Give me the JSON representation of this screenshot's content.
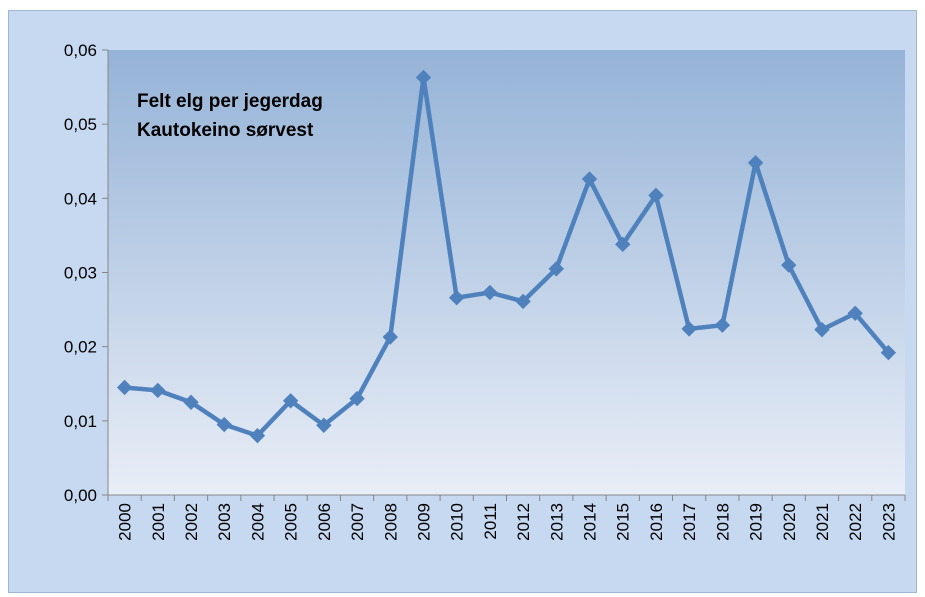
{
  "chart_data": {
    "type": "line",
    "title": [
      "Felt elg per jegerdag",
      "Kautokeino sørvest"
    ],
    "xlabel": "",
    "ylabel": "",
    "categories": [
      "2000",
      "2001",
      "2002",
      "2003",
      "2004",
      "2005",
      "2006",
      "2007",
      "2008",
      "2009",
      "2010",
      "2011",
      "2012",
      "2013",
      "2014",
      "2015",
      "2016",
      "2017",
      "2018",
      "2019",
      "2020",
      "2021",
      "2022",
      "2023"
    ],
    "series": [
      {
        "values": [
          0.0145,
          0.0141,
          0.0125,
          0.0095,
          0.008,
          0.0127,
          0.0094,
          0.013,
          0.0213,
          0.0563,
          0.0266,
          0.0273,
          0.0261,
          0.0305,
          0.0426,
          0.0338,
          0.0404,
          0.0224,
          0.0229,
          0.0448,
          0.031,
          0.0223,
          0.0245,
          0.0192
        ]
      }
    ],
    "ylim": [
      0,
      0.06
    ],
    "yticks": [
      "0,00",
      "0,01",
      "0,02",
      "0,03",
      "0,04",
      "0,05",
      "0,06"
    ],
    "ytick_values": [
      0,
      0.01,
      0.02,
      0.03,
      0.04,
      0.05,
      0.06
    ],
    "grid": false,
    "legend": "none",
    "colors": {
      "line": "#4f81bd",
      "plot_top": "#95b3d7",
      "plot_bottom": "#e9eef7",
      "frame": "#c6d9f1",
      "axis": "#868686"
    }
  }
}
